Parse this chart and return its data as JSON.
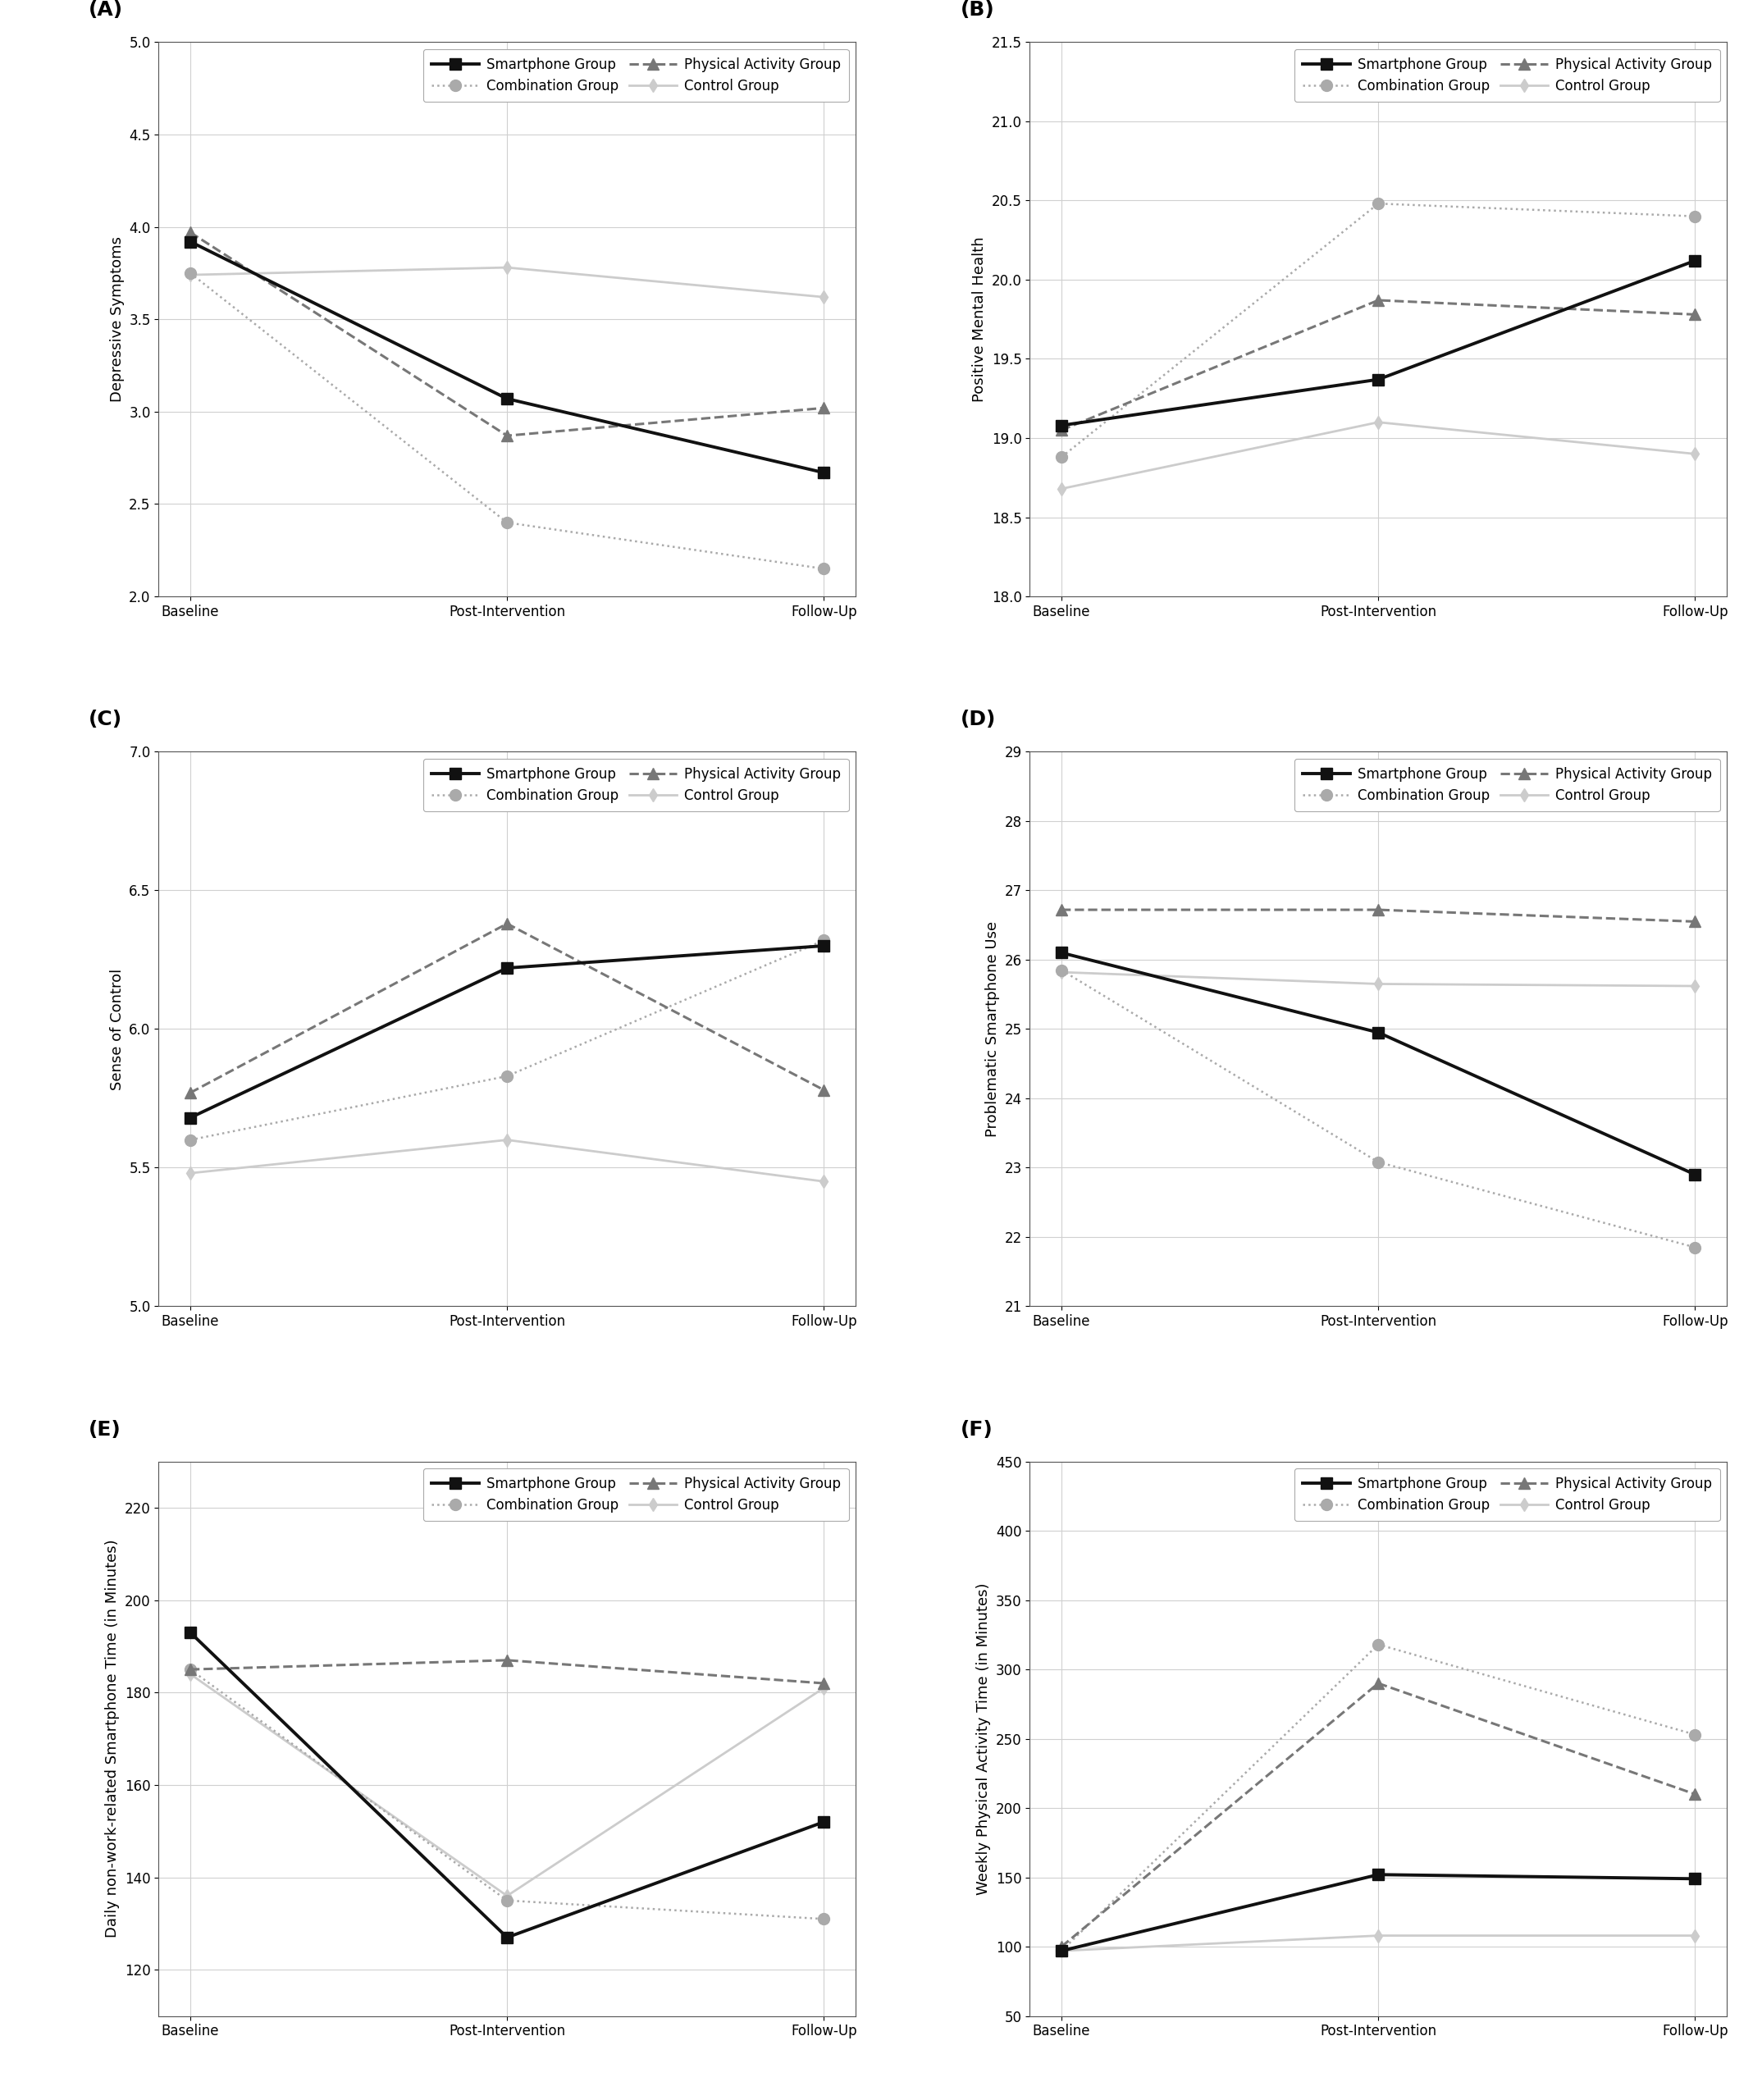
{
  "xticklabels": [
    "Baseline",
    "Post-Intervention",
    "Follow-Up"
  ],
  "x": [
    0,
    1,
    2
  ],
  "A": {
    "label": "(A)",
    "ylabel": "Depressive Symptoms",
    "ylim": [
      2.0,
      5.0
    ],
    "yticks": [
      2.0,
      2.5,
      3.0,
      3.5,
      4.0,
      4.5,
      5.0
    ],
    "smartphone": [
      3.92,
      3.07,
      2.67
    ],
    "physical": [
      3.97,
      2.87,
      3.02
    ],
    "combination": [
      3.75,
      2.4,
      2.15
    ],
    "control": [
      3.74,
      3.78,
      3.62
    ]
  },
  "B": {
    "label": "(B)",
    "ylabel": "Positive Mental Health",
    "ylim": [
      18.0,
      21.5
    ],
    "yticks": [
      18.0,
      18.5,
      19.0,
      19.5,
      20.0,
      20.5,
      21.0,
      21.5
    ],
    "smartphone": [
      19.08,
      19.37,
      20.12
    ],
    "physical": [
      19.05,
      19.87,
      19.78
    ],
    "combination": [
      18.88,
      20.48,
      20.4
    ],
    "control": [
      18.68,
      19.1,
      18.9
    ]
  },
  "C": {
    "label": "(C)",
    "ylabel": "Sense of Control",
    "ylim": [
      5.0,
      7.0
    ],
    "yticks": [
      5.0,
      5.5,
      6.0,
      6.5,
      7.0
    ],
    "smartphone": [
      5.68,
      6.22,
      6.3
    ],
    "physical": [
      5.77,
      6.38,
      5.78
    ],
    "combination": [
      5.6,
      5.83,
      6.32
    ],
    "control": [
      5.48,
      5.6,
      5.45
    ]
  },
  "D": {
    "label": "(D)",
    "ylabel": "Problematic Smartphone Use",
    "ylim": [
      21,
      29
    ],
    "yticks": [
      21,
      22,
      23,
      24,
      25,
      26,
      27,
      28,
      29
    ],
    "smartphone": [
      26.1,
      24.95,
      22.9
    ],
    "physical": [
      26.72,
      26.72,
      26.55
    ],
    "combination": [
      25.85,
      23.08,
      21.85
    ],
    "control": [
      25.82,
      25.65,
      25.62
    ]
  },
  "E": {
    "label": "(E)",
    "ylabel": "Daily non-work-related Smartphone Time (in Minutes)",
    "ylim": [
      110,
      230
    ],
    "yticks": [
      120,
      140,
      160,
      180,
      200,
      220
    ],
    "smartphone": [
      193,
      127,
      152
    ],
    "physical": [
      185,
      187,
      182
    ],
    "combination": [
      185,
      135,
      131
    ],
    "control": [
      184,
      136,
      181
    ]
  },
  "F": {
    "label": "(F)",
    "ylabel": "Weekly Physical Activity Time (in Minutes)",
    "ylim": [
      50,
      450
    ],
    "yticks": [
      50,
      100,
      150,
      200,
      250,
      300,
      350,
      400,
      450
    ],
    "smartphone": [
      97,
      152,
      149
    ],
    "physical": [
      100,
      290,
      210
    ],
    "combination": [
      97,
      318,
      253
    ],
    "control": [
      97,
      108,
      108
    ]
  },
  "color_smartphone": "#111111",
  "color_physical": "#777777",
  "color_combination": "#aaaaaa",
  "color_control": "#cccccc",
  "lw_smartphone": 2.8,
  "lw_physical": 2.2,
  "lw_combination": 1.8,
  "lw_control": 2.0,
  "marker_smartphone": "s",
  "marker_physical": "^",
  "marker_combination": "o",
  "marker_control": "d",
  "ms_smartphone": 10,
  "ms_physical": 10,
  "ms_combination": 10,
  "ms_control": 8,
  "ls_smartphone": "-",
  "ls_physical": "--",
  "ls_combination": ":",
  "ls_control": "-",
  "panel_label_fontsize": 18,
  "axis_label_fontsize": 13,
  "tick_fontsize": 12,
  "legend_fontsize": 12
}
